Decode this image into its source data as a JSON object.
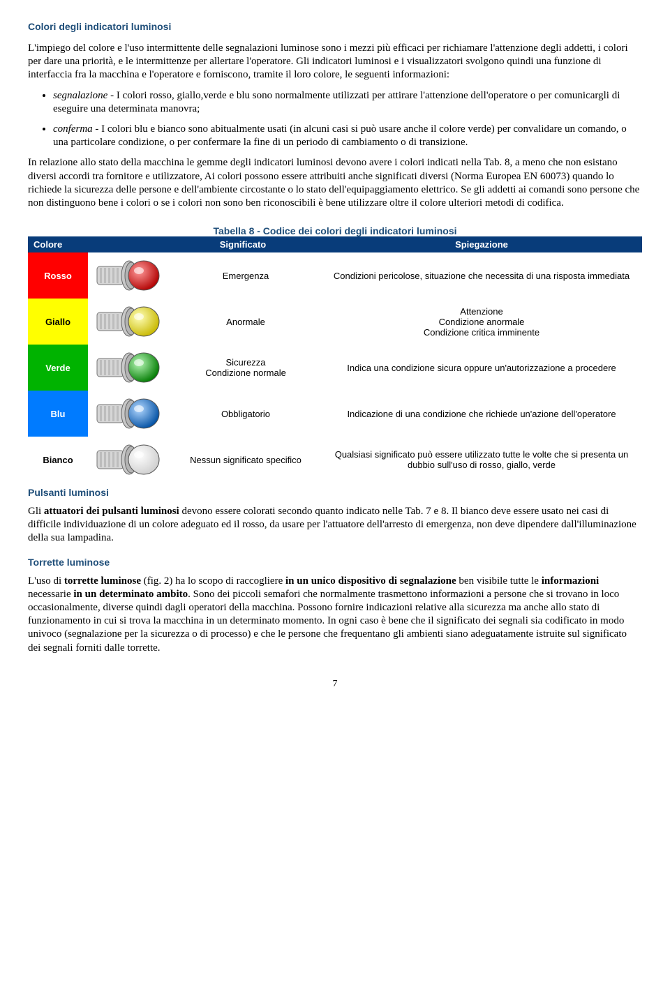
{
  "headings": {
    "main": "Colori degli indicatori luminosi",
    "pulsanti": "Pulsanti luminosi",
    "torrette": "Torrette luminose"
  },
  "paragraphs": {
    "intro": "L'impiego del colore e l'uso intermittente delle segnalazioni luminose sono i mezzi più efficaci per richiamare l'attenzione degli addetti, i colori per dare una priorità, e le intermittenze per allertare l'operatore. Gli indicatori luminosi e i visualizzatori svolgono quindi una funzione di interfaccia fra la macchina e l'operatore e forniscono, tramite il loro colore, le seguenti informazioni:",
    "segnalazione_term": "segnalazione",
    "segnalazione_rest": " - I colori rosso, giallo,verde e blu sono normalmente utilizzati per attirare l'attenzione dell'operatore o per comunicargli di eseguire una determinata manovra;",
    "conferma_term": "conferma",
    "conferma_rest": " - I colori blu e bianco sono abitualmente usati (in alcuni casi si può usare anche il colore verde) per convalidare un comando, o una particolare condizione, o per confermare la fine di un periodo di cambiamento o di transizione.",
    "p2": "In relazione allo stato della macchina le gemme degli indicatori luminosi devono avere i colori indicati nella Tab. 8, a meno che non esistano diversi accordi tra fornitore e utilizzatore, Ai colori possono essere attribuiti anche significati diversi (Norma Europea EN 60073) quando lo richiede la sicurezza delle persone e dell'ambiente circostante o lo stato dell'equipaggiamento elettrico. Se gli addetti ai comandi sono persone che non distinguono bene i colori o se i colori non sono ben riconoscibili è bene utilizzare oltre il colore ulteriori metodi di codifica.",
    "pulsanti_pre": "Gli ",
    "pulsanti_bold": "attuatori dei pulsanti luminosi",
    "pulsanti_rest": " devono essere colorati secondo quanto indicato nelle Tab. 7 e 8. Il bianco deve essere usato nei casi di difficile individuazione di un colore adeguato ed il rosso, da usare per l'attuatore dell'arresto di emergenza, non deve dipendere dall'illuminazione della sua lampadina.",
    "torrette_pre": "L'uso di ",
    "torrette_b1": "torrette luminose",
    "torrette_mid1": " (fig. 2) ha lo scopo di raccogliere ",
    "torrette_b2": "in un unico dispositivo di segnalazione",
    "torrette_mid2": " ben visibile tutte le ",
    "torrette_b3": "informazioni",
    "torrette_mid3": " necessarie ",
    "torrette_b4": "in un determinato ambito",
    "torrette_rest": ". Sono dei piccoli semafori che normalmente trasmettono informazioni a persone che si trovano in loco occasionalmente, diverse quindi dagli operatori della macchina. Possono fornire indicazioni relative alla sicurezza ma anche allo stato di funzionamento in cui si trova la macchina in un determinato momento. In ogni caso è bene che il significato dei segnali sia codificato in modo univoco (segnalazione per la sicurezza o di processo) e che le persone che frequentano gli ambienti siano adeguatamente istruite sul significato dei segnali forniti dalle torrette."
  },
  "table": {
    "caption": "Tabella 8 - Codice dei colori degli indicatori luminosi",
    "headers": {
      "color": "Colore",
      "meaning": "Significato",
      "explain": "Spiegazione"
    },
    "header_bg": "#083c7a",
    "header_fg": "#ffffff",
    "rows": [
      {
        "label": "Rosso",
        "cell_bg": "#ff0000",
        "cell_fg": "#ffffff",
        "lamp_light": "#ff9a9a",
        "lamp_dark": "#b10000",
        "meaning": "Emergenza",
        "explain": "Condizioni pericolose, situazione che necessita di una risposta immediata"
      },
      {
        "label": "Giallo",
        "cell_bg": "#ffff00",
        "cell_fg": "#000000",
        "lamp_light": "#ffffb8",
        "lamp_dark": "#c8b800",
        "meaning": "Anormale",
        "explain": "Attenzione\nCondizione anormale\nCondizione critica imminente"
      },
      {
        "label": "Verde",
        "cell_bg": "#00b300",
        "cell_fg": "#ffffff",
        "lamp_light": "#b6f7b6",
        "lamp_dark": "#007a00",
        "meaning": "Sicurezza\nCondizione normale",
        "explain": "Indica una condizione sicura oppure un'autorizzazione a procedere"
      },
      {
        "label": "Blu",
        "cell_bg": "#007bff",
        "cell_fg": "#ffffff",
        "lamp_light": "#b3d8ff",
        "lamp_dark": "#004fa3",
        "meaning": "Obbligatorio",
        "explain": "Indicazione di una condizione che richiede un'azione dell'operatore"
      },
      {
        "label": "Bianco",
        "cell_bg": "#ffffff",
        "cell_fg": "#000000",
        "lamp_light": "#ffffff",
        "lamp_dark": "#cfcfcf",
        "meaning": "Nessun significato specifico",
        "explain": "Qualsiasi significato può essere utilizzato tutte le volte che si presenta un dubbio sull'uso di rosso, giallo, verde"
      }
    ]
  },
  "page_number": "7"
}
